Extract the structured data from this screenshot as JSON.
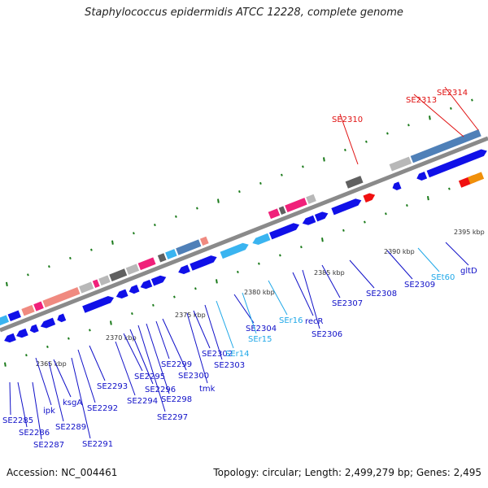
{
  "title": "Staphylococcus epidermidis ATCC 12228, complete genome",
  "footer": {
    "accession": "Accession: NC_004461",
    "topology": "Topology: circular; Length: 2,499,279 bp; Genes: 2,495"
  },
  "colors": {
    "cds": "#1010e8",
    "cds_light": "#3ab4f0",
    "trna": "#f01010",
    "pink": "#f0207a",
    "salmon": "#f08a80",
    "gray": "#b8b8b8",
    "dark": "#606060",
    "steel": "#4f80b8",
    "orange": "#f0900a",
    "axis": "#8a8a8a",
    "tick": "#1a7a1a",
    "label_blue": "#1010c8",
    "label_cyan": "#20a8e8",
    "label_red": "#e01010"
  },
  "kbp_labels": [
    "2365 kbp",
    "2370 kbp",
    "2375 kbp",
    "2380 kbp",
    "2385 kbp",
    "2390 kbp",
    "2395 kbp"
  ],
  "gene_labels": [
    {
      "text": "SE2285",
      "kind": "cds"
    },
    {
      "text": "SE2286",
      "kind": "cds"
    },
    {
      "text": "SE2287",
      "kind": "cds"
    },
    {
      "text": "ipk",
      "kind": "cds"
    },
    {
      "text": "SE2289",
      "kind": "cds"
    },
    {
      "text": "ksgA",
      "kind": "cds"
    },
    {
      "text": "SE2291",
      "kind": "cds"
    },
    {
      "text": "SE2292",
      "kind": "cds"
    },
    {
      "text": "SE2293",
      "kind": "cds"
    },
    {
      "text": "SE2294",
      "kind": "cds"
    },
    {
      "text": "SE2295",
      "kind": "cds"
    },
    {
      "text": "SE2296",
      "kind": "cds"
    },
    {
      "text": "SE2297",
      "kind": "cds"
    },
    {
      "text": "SE2298",
      "kind": "cds"
    },
    {
      "text": "SE2299",
      "kind": "cds"
    },
    {
      "text": "SE2300",
      "kind": "cds"
    },
    {
      "text": "tmk",
      "kind": "cds"
    },
    {
      "text": "SE2302",
      "kind": "cds"
    },
    {
      "text": "SE2303",
      "kind": "cds"
    },
    {
      "text": "SEr14",
      "kind": "rrna"
    },
    {
      "text": "SE2304",
      "kind": "cds"
    },
    {
      "text": "SEr15",
      "kind": "rrna"
    },
    {
      "text": "SEr16",
      "kind": "rrna"
    },
    {
      "text": "recR",
      "kind": "cds"
    },
    {
      "text": "SE2306",
      "kind": "cds"
    },
    {
      "text": "SE2307",
      "kind": "cds"
    },
    {
      "text": "SE2308",
      "kind": "cds"
    },
    {
      "text": "SE2309",
      "kind": "cds"
    },
    {
      "text": "SEt60",
      "kind": "rrna"
    },
    {
      "text": "gltD",
      "kind": "cds"
    },
    {
      "text": "SE2310",
      "kind": "trna"
    },
    {
      "text": "SE2313",
      "kind": "trna"
    },
    {
      "text": "SE2314",
      "kind": "trna"
    }
  ]
}
